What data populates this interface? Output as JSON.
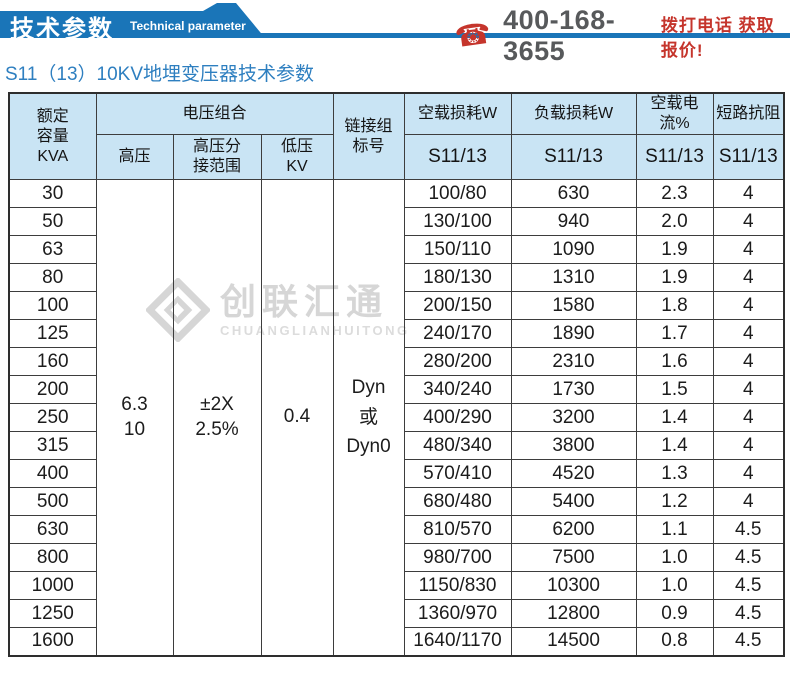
{
  "banner": {
    "title_cn": "技术参数",
    "title_en": "Technical parameter"
  },
  "contact": {
    "phone": "400-168-3655",
    "cta": "拨打电话 获取报价!"
  },
  "page_title": "S11（13）10KV地埋变压器技术参数",
  "watermark": {
    "cn": "创联汇通",
    "en": "CHUANGLIANHUITONG"
  },
  "colors": {
    "accent_blue": "#1a75b8",
    "header_bg": "#c9e4f4",
    "red": "#c5352c",
    "title_blue": "#2e7fc0"
  },
  "table": {
    "header": {
      "capacity": "额定\n容量\nKVA",
      "voltage_combo": "电压组合",
      "hv": "高压",
      "hv_tap": "高压分\n接范围",
      "lv": "低压\nKV",
      "vector": "链接组\n标号",
      "no_load_loss": "空载损耗W",
      "load_loss": "负载损耗W",
      "no_load_current": "空载电流%",
      "impedance": "短路抗阻",
      "series": "S11/13"
    },
    "merged": {
      "hv": "6.3\n10",
      "hv_tap": "±2X\n2.5%",
      "lv": "0.4",
      "vector": "Dyn\n或\nDyn0"
    },
    "rows": [
      {
        "kva": "30",
        "no_load": "100/80",
        "load": "630",
        "current": "2.3",
        "impedance": "4"
      },
      {
        "kva": "50",
        "no_load": "130/100",
        "load": "940",
        "current": "2.0",
        "impedance": "4"
      },
      {
        "kva": "63",
        "no_load": "150/110",
        "load": "1090",
        "current": "1.9",
        "impedance": "4"
      },
      {
        "kva": "80",
        "no_load": "180/130",
        "load": "1310",
        "current": "1.9",
        "impedance": "4"
      },
      {
        "kva": "100",
        "no_load": "200/150",
        "load": "1580",
        "current": "1.8",
        "impedance": "4"
      },
      {
        "kva": "125",
        "no_load": "240/170",
        "load": "1890",
        "current": "1.7",
        "impedance": "4"
      },
      {
        "kva": "160",
        "no_load": "280/200",
        "load": "2310",
        "current": "1.6",
        "impedance": "4"
      },
      {
        "kva": "200",
        "no_load": "340/240",
        "load": "1730",
        "current": "1.5",
        "impedance": "4"
      },
      {
        "kva": "250",
        "no_load": "400/290",
        "load": "3200",
        "current": "1.4",
        "impedance": "4"
      },
      {
        "kva": "315",
        "no_load": "480/340",
        "load": "3800",
        "current": "1.4",
        "impedance": "4"
      },
      {
        "kva": "400",
        "no_load": "570/410",
        "load": "4520",
        "current": "1.3",
        "impedance": "4"
      },
      {
        "kva": "500",
        "no_load": "680/480",
        "load": "5400",
        "current": "1.2",
        "impedance": "4"
      },
      {
        "kva": "630",
        "no_load": "810/570",
        "load": "6200",
        "current": "1.1",
        "impedance": "4.5"
      },
      {
        "kva": "800",
        "no_load": "980/700",
        "load": "7500",
        "current": "1.0",
        "impedance": "4.5"
      },
      {
        "kva": "1000",
        "no_load": "1150/830",
        "load": "10300",
        "current": "1.0",
        "impedance": "4.5"
      },
      {
        "kva": "1250",
        "no_load": "1360/970",
        "load": "12800",
        "current": "0.9",
        "impedance": "4.5"
      },
      {
        "kva": "1600",
        "no_load": "1640/1170",
        "load": "14500",
        "current": "0.8",
        "impedance": "4.5"
      }
    ]
  }
}
